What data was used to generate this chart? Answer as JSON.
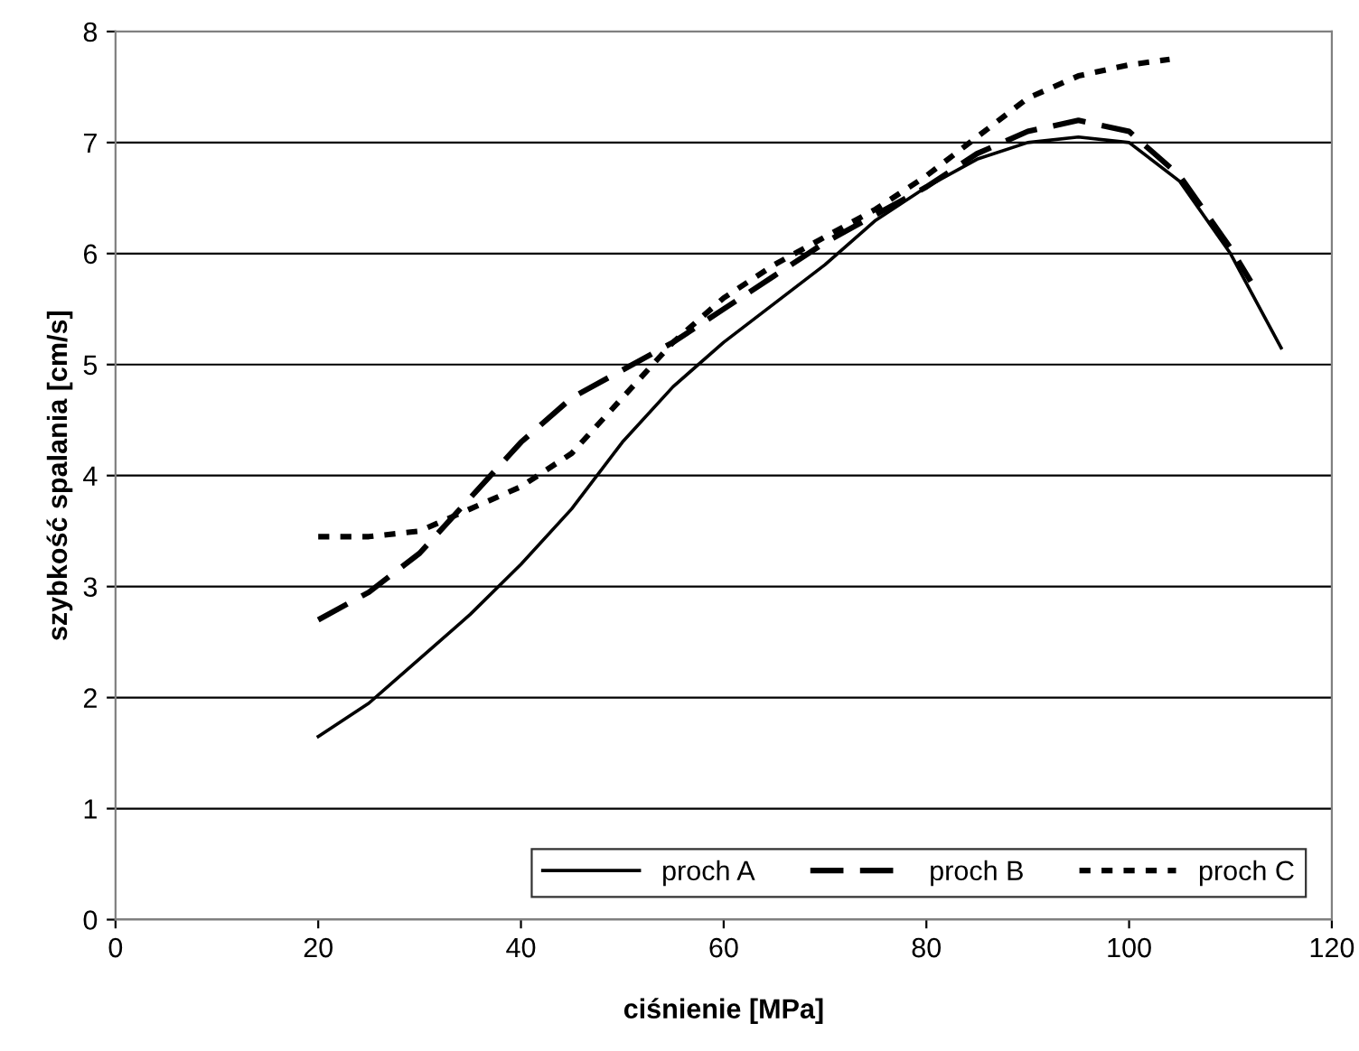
{
  "chart_data": {
    "type": "line",
    "xlabel": "ciśnienie [MPa]",
    "ylabel": "szybkość spalania [cm/s]",
    "xlim": [
      0,
      120
    ],
    "ylim": [
      0,
      8
    ],
    "xticks": [
      0,
      20,
      40,
      60,
      80,
      100,
      120
    ],
    "yticks": [
      0,
      1,
      2,
      3,
      4,
      5,
      6,
      7,
      8
    ],
    "grid": "y",
    "legend": "bottom right",
    "marker": "none",
    "series": [
      {
        "name": "proch A",
        "color": "#000000",
        "line_style": "solid",
        "x": [
          20,
          25,
          30,
          35,
          40,
          45,
          50,
          55,
          60,
          65,
          70,
          75,
          80,
          85,
          90,
          95,
          100,
          105,
          110,
          115
        ],
        "values": [
          1.65,
          1.95,
          2.35,
          2.75,
          3.2,
          3.7,
          4.3,
          4.8,
          5.2,
          5.55,
          5.9,
          6.3,
          6.6,
          6.85,
          7.0,
          7.05,
          7.0,
          6.65,
          6.0,
          5.15
        ]
      },
      {
        "name": "proch B",
        "color": "#000000",
        "line_style": "dashed",
        "x": [
          20,
          25,
          30,
          35,
          40,
          45,
          50,
          55,
          60,
          65,
          70,
          75,
          80,
          85,
          90,
          95,
          100,
          105,
          110,
          112
        ],
        "values": [
          2.7,
          2.95,
          3.3,
          3.8,
          4.3,
          4.7,
          4.95,
          5.2,
          5.5,
          5.8,
          6.1,
          6.35,
          6.6,
          6.9,
          7.1,
          7.2,
          7.1,
          6.7,
          6.05,
          5.75
        ]
      },
      {
        "name": "proch C",
        "color": "#000000",
        "line_style": "dotted",
        "x": [
          20,
          25,
          30,
          35,
          40,
          45,
          50,
          55,
          60,
          65,
          70,
          75,
          80,
          85,
          90,
          95,
          100,
          104
        ],
        "values": [
          3.45,
          3.45,
          3.5,
          3.7,
          3.9,
          4.2,
          4.7,
          5.2,
          5.6,
          5.9,
          6.15,
          6.4,
          6.7,
          7.05,
          7.4,
          7.6,
          7.7,
          7.75
        ]
      }
    ]
  }
}
